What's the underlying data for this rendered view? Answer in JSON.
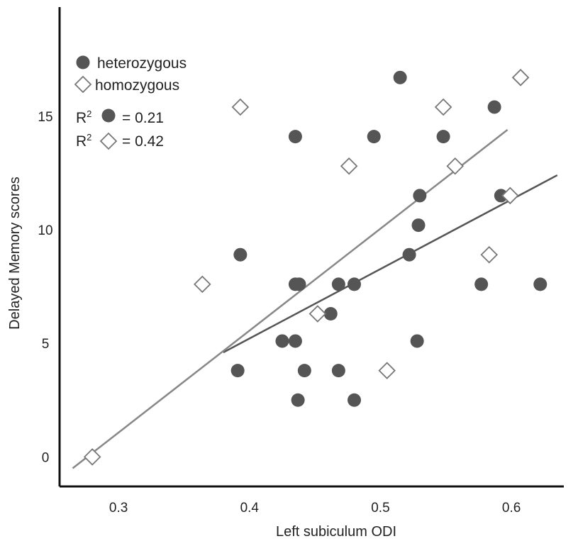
{
  "chart_data": {
    "type": "scatter",
    "title": "",
    "xlabel": "Left subiculum ODI",
    "ylabel": "Delayed Memory scores",
    "xlim": [
      0.255,
      0.64
    ],
    "ylim": [
      -1.3,
      19.8
    ],
    "xticks": [
      0.3,
      0.4,
      0.5,
      0.6
    ],
    "xtick_labels": [
      "0.3",
      "0.4",
      "0.5",
      "0.6"
    ],
    "yticks": [
      0,
      5,
      10,
      15
    ],
    "ytick_labels": [
      "0",
      "5",
      "10",
      "15"
    ],
    "grid": false,
    "legend_position": "top-left",
    "legend": {
      "heterozygous_label": "heterozygous",
      "homozygous_label": "homozygous",
      "r2_symbol": "R",
      "r2_superscript": "2",
      "r2_heterozygous_text": "= 0.21",
      "r2_homozygous_text": "= 0.42"
    },
    "series": [
      {
        "name": "heterozygous",
        "marker": "filled-circle",
        "color": "#555555",
        "points": [
          [
            0.515,
            16.7
          ],
          [
            0.587,
            15.4
          ],
          [
            0.435,
            14.1
          ],
          [
            0.495,
            14.1
          ],
          [
            0.548,
            14.1
          ],
          [
            0.53,
            11.5
          ],
          [
            0.592,
            11.5
          ],
          [
            0.529,
            10.2
          ],
          [
            0.393,
            8.9
          ],
          [
            0.522,
            8.9
          ],
          [
            0.435,
            7.6
          ],
          [
            0.438,
            7.6
          ],
          [
            0.468,
            7.6
          ],
          [
            0.48,
            7.6
          ],
          [
            0.577,
            7.6
          ],
          [
            0.622,
            7.6
          ],
          [
            0.462,
            6.3
          ],
          [
            0.425,
            5.1
          ],
          [
            0.435,
            5.1
          ],
          [
            0.528,
            5.1
          ],
          [
            0.391,
            3.8
          ],
          [
            0.442,
            3.8
          ],
          [
            0.468,
            3.8
          ],
          [
            0.437,
            2.5
          ],
          [
            0.48,
            2.5
          ]
        ],
        "fit_line": {
          "x": [
            0.38,
            0.635
          ],
          "y": [
            4.6,
            12.4
          ],
          "r2": 0.21,
          "color": "#555555"
        }
      },
      {
        "name": "homozygous",
        "marker": "open-diamond",
        "color": "#777777",
        "points": [
          [
            0.607,
            16.7
          ],
          [
            0.393,
            15.4
          ],
          [
            0.548,
            15.4
          ],
          [
            0.476,
            12.8
          ],
          [
            0.557,
            12.8
          ],
          [
            0.599,
            11.5
          ],
          [
            0.583,
            8.9
          ],
          [
            0.364,
            7.6
          ],
          [
            0.452,
            6.3
          ],
          [
            0.505,
            3.8
          ],
          [
            0.28,
            0.0
          ]
        ],
        "fit_line": {
          "x": [
            0.265,
            0.597
          ],
          "y": [
            -0.5,
            14.4
          ],
          "r2": 0.42,
          "color": "#888888"
        }
      }
    ]
  }
}
